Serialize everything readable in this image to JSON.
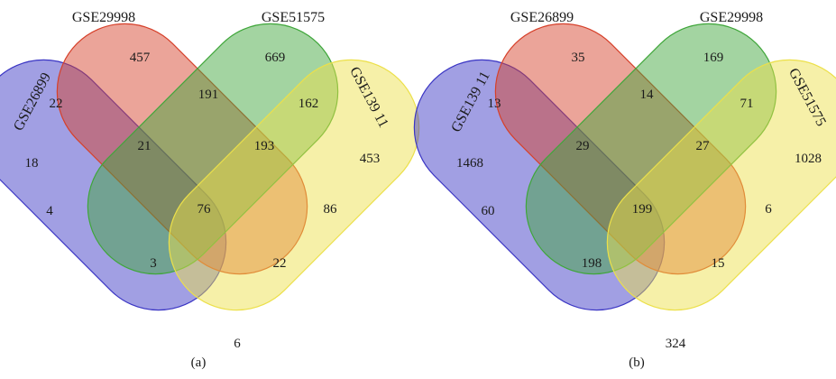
{
  "figure": {
    "panels": [
      {
        "label": "(a)",
        "sets": [
          {
            "name": "GSE26899",
            "color": "#3b36c4"
          },
          {
            "name": "GSE29998",
            "color": "#d6402a"
          },
          {
            "name": "GSE51575",
            "color": "#3fa63a"
          },
          {
            "name": "GSE139 11",
            "color": "#ece04a"
          }
        ],
        "counts": {
          "A": "18",
          "B": "457",
          "C": "669",
          "D": "453",
          "AB": "22",
          "AC": "4",
          "AD": "6",
          "BC": "191",
          "BD": "86",
          "CD": "162",
          "ABC": "21",
          "ABD": "22",
          "ACD": "3",
          "BCD": "193",
          "ABCD": "76"
        }
      },
      {
        "label": "(b)",
        "sets": [
          {
            "name": "GSE139 11",
            "color": "#3b36c4"
          },
          {
            "name": "GSE26899",
            "color": "#d6402a"
          },
          {
            "name": "GSE29998",
            "color": "#3fa63a"
          },
          {
            "name": "GSE51575",
            "color": "#ece04a"
          }
        ],
        "counts": {
          "A": "1468",
          "B": "35",
          "C": "169",
          "D": "1028",
          "AB": "13",
          "AC": "60",
          "AD": "324",
          "BC": "14",
          "BD": "6",
          "CD": "71",
          "ABC": "29",
          "ABD": "15",
          "ACD": "198",
          "BCD": "27",
          "ABCD": "199"
        }
      }
    ]
  }
}
